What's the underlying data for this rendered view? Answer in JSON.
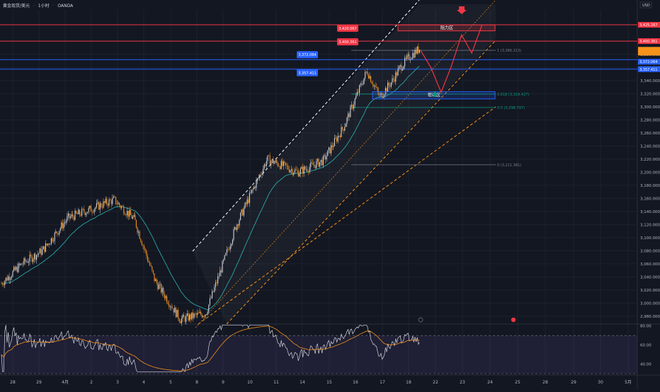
{
  "header": {
    "symbol": "黄金现货/美元",
    "interval": "1小时",
    "source": "OANDA",
    "currency": "USD"
  },
  "colors": {
    "background": "#131722",
    "grid": "#1e222d",
    "up": "#d1d4dc",
    "down": "#f7931a",
    "ema": "#2aa7a7",
    "resistance": "#f23645",
    "support": "#2962ff",
    "channel_upper": "#ffffff",
    "channel_lower": "#f7931a",
    "fib": "#787b86",
    "fib_green": "#089981",
    "rsi_line": "#d1d4dc",
    "rsi_ma": "#f7931a",
    "rsi_band": "#7e57c2"
  },
  "chart_data": [
    {
      "type": "candlestick",
      "title": "黄金现货/美元 · 1小时 · OANDA",
      "yaxis_ticks": [
        "3,400.000",
        "3,380.000",
        "3,360.000",
        "3,340.000",
        "3,320.000",
        "3,300.000",
        "3,280.000",
        "3,260.000",
        "3,240.000",
        "3,220.000",
        "3,200.000",
        "3,180.000",
        "3,160.000",
        "3,140.000",
        "3,120.000",
        "3,100.000",
        "3,080.000",
        "3,060.000",
        "3,040.000",
        "3,020.000",
        "3,000.000",
        "2,980.000"
      ],
      "ylim": [
        2968,
        3448
      ],
      "xaxis_ticks": [
        "28",
        "29",
        "4月",
        "2",
        "3",
        "4",
        "5",
        "8",
        "9",
        "10",
        "11",
        "14",
        "15",
        "16",
        "17",
        "18",
        "22",
        "23",
        "24",
        "25",
        "28",
        "29",
        "30",
        "5月"
      ],
      "price_markers": [
        {
          "label": "3,420.067",
          "value": 3420.067,
          "color": "#f23645"
        },
        {
          "label": "3,400.361",
          "value": 3400.361,
          "color": "#f23645"
        },
        {
          "label": "3,372.064",
          "value": 3372.064,
          "color": "#2962ff"
        },
        {
          "label": "3,357.411",
          "value": 3357.411,
          "color": "#2962ff"
        },
        {
          "label": "3,425.267",
          "value": 3425.267,
          "color": "#f23645"
        }
      ],
      "fib_levels": [
        {
          "label": "1 (3,386.213)",
          "value": 3386.213
        },
        {
          "label": "0.618 (3,319.427)",
          "value": 3319.427
        },
        {
          "label": "0.5 (3,298.797)",
          "value": 3298.797
        },
        {
          "label": "0 (3,211.381)",
          "value": 3211.381
        }
      ],
      "zones": [
        {
          "label": "阻力区",
          "top": 3425,
          "bottom": 3416,
          "color": "#f23645"
        },
        {
          "label": "帮助区",
          "top": 3323,
          "bottom": 3312,
          "color": "#2962ff"
        }
      ],
      "path_points": [
        [
          0,
          3030
        ],
        [
          8,
          3060
        ],
        [
          16,
          3080
        ],
        [
          26,
          3130
        ],
        [
          34,
          3142
        ],
        [
          44,
          3158
        ],
        [
          52,
          3128
        ],
        [
          60,
          3035
        ],
        [
          70,
          2975
        ],
        [
          80,
          2985
        ],
        [
          92,
          3120
        ],
        [
          104,
          3220
        ],
        [
          116,
          3200
        ],
        [
          126,
          3218
        ],
        [
          134,
          3270
        ],
        [
          143,
          3355
        ],
        [
          148,
          3315
        ],
        [
          153,
          3340
        ],
        [
          156,
          3360
        ],
        [
          160,
          3378
        ],
        [
          164,
          3390
        ]
      ],
      "forecast": [
        [
          164,
          3386
        ],
        [
          168,
          3360
        ],
        [
          172,
          3322
        ],
        [
          176,
          3362
        ],
        [
          180,
          3410
        ],
        [
          184,
          3382
        ],
        [
          188,
          3425
        ]
      ],
      "candles_per_day": 24
    },
    {
      "type": "line",
      "title": "",
      "yaxis_ticks": [
        "80.00",
        "60.00",
        "40.00"
      ],
      "ylim": [
        30,
        82
      ],
      "band": [
        30,
        70
      ],
      "series": [
        {
          "values_source": "rsi"
        },
        {
          "values_source": "rsi_ma"
        }
      ]
    }
  ]
}
